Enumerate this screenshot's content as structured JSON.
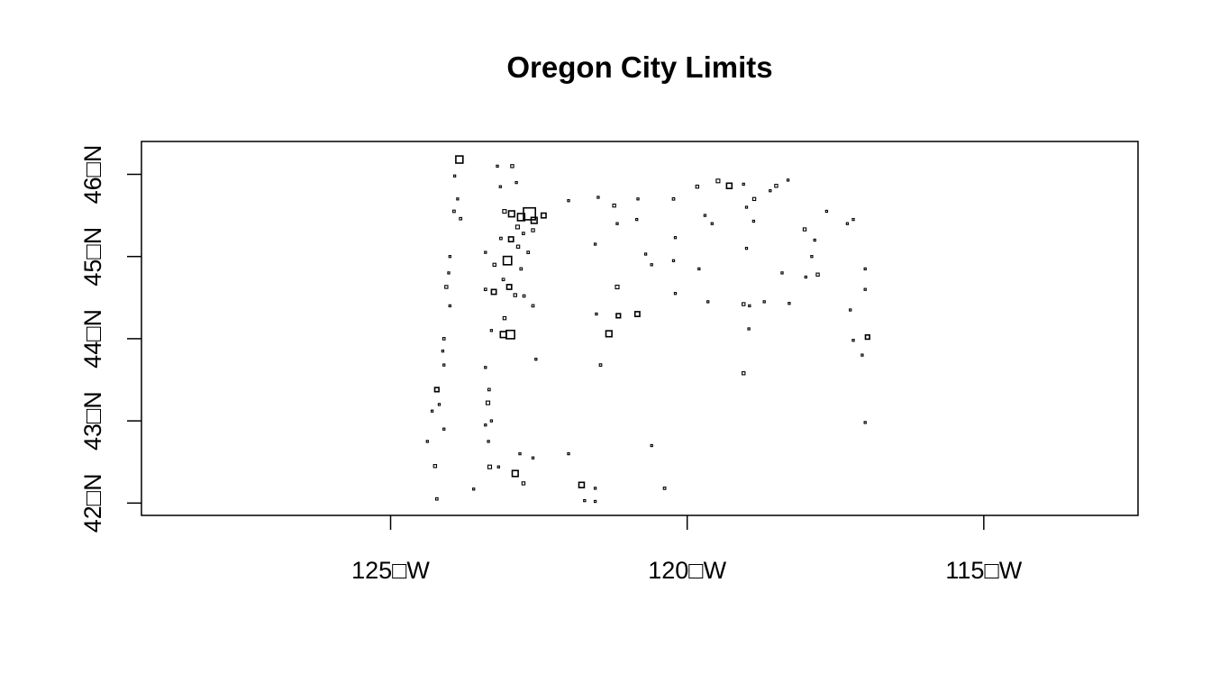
{
  "title": "Oregon City Limits",
  "colors": {
    "outline": "#000000",
    "background": "#ffffff"
  },
  "map": {
    "projection": "longlat",
    "xlim": [
      -129.2,
      -112.4
    ],
    "ylim": [
      41.85,
      46.4
    ],
    "x_ticks": [
      {
        "value": -125,
        "label": "125□W"
      },
      {
        "value": -120,
        "label": "120□W"
      },
      {
        "value": -115,
        "label": "115□W"
      }
    ],
    "y_ticks": [
      {
        "value": 42,
        "label": "42□N"
      },
      {
        "value": 43,
        "label": "43□N"
      },
      {
        "value": 44,
        "label": "44□N"
      },
      {
        "value": 45,
        "label": "45□N"
      },
      {
        "value": 46,
        "label": "46□N"
      }
    ],
    "cities": [
      [
        -123.84,
        46.18,
        0.12
      ],
      [
        -123.92,
        45.98,
        0.03
      ],
      [
        -123.93,
        45.55,
        0.04
      ],
      [
        -123.87,
        45.7,
        0.03
      ],
      [
        -123.82,
        45.46,
        0.04
      ],
      [
        -124.0,
        45.0,
        0.03
      ],
      [
        -124.02,
        44.8,
        0.03
      ],
      [
        -124.06,
        44.63,
        0.05
      ],
      [
        -124.0,
        44.4,
        0.03
      ],
      [
        -124.1,
        44.0,
        0.04
      ],
      [
        -124.12,
        43.85,
        0.03
      ],
      [
        -124.1,
        43.68,
        0.03
      ],
      [
        -124.22,
        43.38,
        0.07
      ],
      [
        -124.3,
        43.12,
        0.03
      ],
      [
        -124.18,
        43.2,
        0.03
      ],
      [
        -124.1,
        42.9,
        0.03
      ],
      [
        -124.38,
        42.75,
        0.03
      ],
      [
        -124.25,
        42.45,
        0.05
      ],
      [
        -124.22,
        42.05,
        0.04
      ],
      [
        -123.2,
        46.1,
        0.03
      ],
      [
        -122.95,
        46.1,
        0.05
      ],
      [
        -122.88,
        45.9,
        0.03
      ],
      [
        -123.15,
        45.85,
        0.03
      ],
      [
        -122.66,
        45.52,
        0.2
      ],
      [
        -122.8,
        45.48,
        0.12
      ],
      [
        -122.58,
        45.44,
        0.1
      ],
      [
        -122.96,
        45.52,
        0.1
      ],
      [
        -122.42,
        45.5,
        0.08
      ],
      [
        -123.08,
        45.55,
        0.06
      ],
      [
        -122.86,
        45.36,
        0.06
      ],
      [
        -122.6,
        45.32,
        0.05
      ],
      [
        -122.76,
        45.28,
        0.04
      ],
      [
        -122.97,
        45.21,
        0.08
      ],
      [
        -123.14,
        45.22,
        0.04
      ],
      [
        -122.85,
        45.12,
        0.05
      ],
      [
        -123.4,
        45.05,
        0.03
      ],
      [
        -122.68,
        45.05,
        0.04
      ],
      [
        -123.03,
        44.95,
        0.14
      ],
      [
        -123.25,
        44.9,
        0.05
      ],
      [
        -122.8,
        44.85,
        0.04
      ],
      [
        -123.1,
        44.72,
        0.04
      ],
      [
        -123.0,
        44.63,
        0.08
      ],
      [
        -123.26,
        44.57,
        0.08
      ],
      [
        -122.9,
        44.53,
        0.05
      ],
      [
        -122.75,
        44.52,
        0.04
      ],
      [
        -122.6,
        44.4,
        0.04
      ],
      [
        -123.4,
        44.6,
        0.04
      ],
      [
        -123.08,
        44.25,
        0.05
      ],
      [
        -123.1,
        44.05,
        0.1
      ],
      [
        -122.98,
        44.05,
        0.14
      ],
      [
        -123.3,
        44.1,
        0.03
      ],
      [
        -122.55,
        43.75,
        0.03
      ],
      [
        -123.4,
        43.65,
        0.03
      ],
      [
        -123.34,
        43.38,
        0.04
      ],
      [
        -123.36,
        43.22,
        0.06
      ],
      [
        -123.3,
        43.0,
        0.03
      ],
      [
        -123.4,
        42.95,
        0.03
      ],
      [
        -123.35,
        42.75,
        0.03
      ],
      [
        -123.33,
        42.44,
        0.06
      ],
      [
        -123.18,
        42.44,
        0.03
      ],
      [
        -122.9,
        42.36,
        0.1
      ],
      [
        -122.76,
        42.24,
        0.05
      ],
      [
        -122.82,
        42.6,
        0.03
      ],
      [
        -122.6,
        42.55,
        0.03
      ],
      [
        -123.6,
        42.17,
        0.03
      ],
      [
        -121.78,
        42.22,
        0.09
      ],
      [
        -121.55,
        42.18,
        0.03
      ],
      [
        -122.0,
        42.6,
        0.03
      ],
      [
        -121.73,
        42.03,
        0.03
      ],
      [
        -121.55,
        42.02,
        0.03
      ],
      [
        -120.38,
        42.18,
        0.04
      ],
      [
        -120.6,
        42.7,
        0.03
      ],
      [
        -122.0,
        45.68,
        0.03
      ],
      [
        -121.5,
        45.72,
        0.03
      ],
      [
        -121.23,
        45.62,
        0.05
      ],
      [
        -120.83,
        45.7,
        0.03
      ],
      [
        -120.85,
        45.45,
        0.03
      ],
      [
        -121.18,
        45.4,
        0.03
      ],
      [
        -121.55,
        45.15,
        0.03
      ],
      [
        -120.7,
        45.03,
        0.03
      ],
      [
        -120.23,
        45.7,
        0.04
      ],
      [
        -120.2,
        45.23,
        0.03
      ],
      [
        -120.23,
        44.95,
        0.03
      ],
      [
        -120.2,
        44.55,
        0.03
      ],
      [
        -119.83,
        45.85,
        0.05
      ],
      [
        -119.48,
        45.92,
        0.06
      ],
      [
        -119.29,
        45.86,
        0.09
      ],
      [
        -119.05,
        45.88,
        0.03
      ],
      [
        -118.87,
        45.7,
        0.05
      ],
      [
        -118.5,
        45.86,
        0.05
      ],
      [
        -118.3,
        45.93,
        0.03
      ],
      [
        -119.7,
        45.5,
        0.03
      ],
      [
        -119.58,
        45.4,
        0.03
      ],
      [
        -119.0,
        45.6,
        0.03
      ],
      [
        -118.88,
        45.43,
        0.03
      ],
      [
        -118.6,
        45.8,
        0.03
      ],
      [
        -118.02,
        45.33,
        0.05
      ],
      [
        -117.85,
        45.2,
        0.03
      ],
      [
        -117.65,
        45.55,
        0.03
      ],
      [
        -117.2,
        45.45,
        0.03
      ],
      [
        -117.3,
        45.4,
        0.03
      ],
      [
        -117.9,
        45.0,
        0.03
      ],
      [
        -118.0,
        44.75,
        0.03
      ],
      [
        -118.4,
        44.8,
        0.03
      ],
      [
        -117.8,
        44.78,
        0.05
      ],
      [
        -117.0,
        44.85,
        0.03
      ],
      [
        -117.0,
        44.6,
        0.03
      ],
      [
        -119.0,
        45.1,
        0.03
      ],
      [
        -119.8,
        44.85,
        0.03
      ],
      [
        -120.6,
        44.9,
        0.03
      ],
      [
        -121.18,
        44.63,
        0.06
      ],
      [
        -121.16,
        44.28,
        0.07
      ],
      [
        -120.84,
        44.3,
        0.08
      ],
      [
        -121.53,
        44.3,
        0.03
      ],
      [
        -121.32,
        44.06,
        0.1
      ],
      [
        -121.46,
        43.68,
        0.04
      ],
      [
        -119.05,
        44.42,
        0.05
      ],
      [
        -118.95,
        44.4,
        0.03
      ],
      [
        -118.7,
        44.45,
        0.03
      ],
      [
        -118.28,
        44.43,
        0.03
      ],
      [
        -119.65,
        44.45,
        0.03
      ],
      [
        -118.96,
        44.12,
        0.03
      ],
      [
        -119.05,
        43.58,
        0.05
      ],
      [
        -117.25,
        44.35,
        0.03
      ],
      [
        -116.96,
        44.02,
        0.07
      ],
      [
        -117.2,
        43.98,
        0.03
      ],
      [
        -117.05,
        43.8,
        0.03
      ],
      [
        -117.0,
        42.98,
        0.03
      ]
    ]
  }
}
